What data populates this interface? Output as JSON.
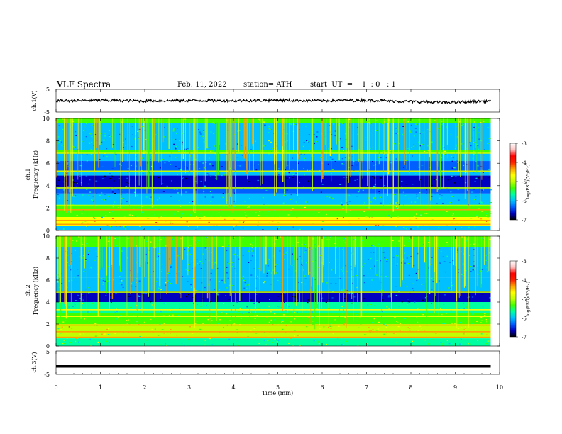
{
  "header": {
    "title": "VLF Spectra",
    "date": "Feb. 11, 2022",
    "station": "station= ATH",
    "start_ut": "start  UT  =    1  : 0   : 1"
  },
  "panels": {
    "ch1_wave": {
      "ylabel": "ch.1(V)",
      "yticks": [
        "5",
        "-5"
      ]
    },
    "ch1_spec": {
      "ylabel_line1": "ch.1",
      "ylabel_line2": "Frequency  (kHz)",
      "yticks": [
        "10",
        "8",
        "6",
        "4",
        "2",
        "0"
      ]
    },
    "ch2_spec": {
      "ylabel_line1": "ch.2",
      "ylabel_line2": "Frequency  (kHz)",
      "yticks": [
        "10",
        "8",
        "6",
        "4",
        "2",
        "0"
      ]
    },
    "ch3_wave": {
      "ylabel": "ch.3(V)",
      "yticks": [
        "5",
        "-5"
      ]
    }
  },
  "x_axis": {
    "label": "Time  (min)",
    "ticks": [
      "0",
      "1",
      "2",
      "3",
      "4",
      "5",
      "6",
      "7",
      "8",
      "9",
      "10"
    ]
  },
  "colorbar": {
    "label": "log(PSD)(V²/Hz)",
    "ticks": [
      "-3",
      "-4",
      "-5",
      "-6",
      "-7"
    ],
    "colors": [
      "#000000",
      "#0000c0",
      "#0060ff",
      "#00c0ff",
      "#00ffa0",
      "#40ff00",
      "#c0ff00",
      "#ffff00",
      "#ffa000",
      "#ff2000",
      "#ff0000",
      "#ffc0c0",
      "#ffffff"
    ]
  },
  "chart_data": [
    {
      "type": "line",
      "title": "VLF Spectra",
      "ylabel": "ch.1(V)",
      "xlabel": "",
      "xlim": [
        0,
        10
      ],
      "ylim": [
        -5,
        5
      ],
      "series": [
        {
          "x": [
            0,
            1,
            2,
            3,
            4,
            5,
            6,
            7,
            8,
            8.8,
            9.8
          ],
          "values": [
            0,
            0.1,
            -0.1,
            0.1,
            0,
            0.2,
            0,
            0.2,
            -0.4,
            -0.8,
            -0.1
          ]
        }
      ]
    },
    {
      "type": "heatmap",
      "ylabel": "ch.1  Frequency  (kHz)",
      "xlim": [
        0,
        10
      ],
      "ylim": [
        0,
        10
      ],
      "data_end_min": 9.8,
      "bands": [
        {
          "freq": [
            9.6,
            10
          ],
          "level": -5.2
        },
        {
          "freq": [
            7.2,
            9.6
          ],
          "level": -6.0
        },
        {
          "freq": [
            6.9,
            7.2
          ],
          "level": -5.4
        },
        {
          "freq": [
            6.2,
            6.9
          ],
          "level": -6.0
        },
        {
          "freq": [
            5.2,
            6.2
          ],
          "level": -6.2
        },
        {
          "freq": [
            4.9,
            5.2
          ],
          "level": -6.0
        },
        {
          "freq": [
            3.9,
            4.9
          ],
          "level": -6.8
        },
        {
          "freq": [
            3.3,
            3.9
          ],
          "level": -6.3
        },
        {
          "freq": [
            2.3,
            3.3
          ],
          "level": -6.0
        },
        {
          "freq": [
            2.0,
            2.3
          ],
          "level": -5.5
        },
        {
          "freq": [
            1.2,
            2.0
          ],
          "level": -5.4
        },
        {
          "freq": [
            0.4,
            1.2
          ],
          "level": -4.7
        },
        {
          "freq": [
            0,
            0.4
          ],
          "level": -6.0
        }
      ],
      "lines_khz": [
        {
          "freq": 6.9,
          "level": -5.0
        },
        {
          "freq": 5.3,
          "level": -5.1
        },
        {
          "freq": 3.8,
          "level": -5.0
        },
        {
          "freq": 2.2,
          "level": -4.6
        },
        {
          "freq": 1.85,
          "level": -4.5
        },
        {
          "freq": 0.9,
          "level": -4.2
        },
        {
          "freq": 0.55,
          "level": -4.3
        }
      ]
    },
    {
      "type": "heatmap",
      "ylabel": "ch.2  Frequency  (kHz)",
      "xlim": [
        0,
        10
      ],
      "ylim": [
        0,
        10
      ],
      "data_end_min": 9.8,
      "bands": [
        {
          "freq": [
            9.0,
            10
          ],
          "level": -5.4
        },
        {
          "freq": [
            6.2,
            9.0
          ],
          "level": -6.0
        },
        {
          "freq": [
            5.0,
            6.2
          ],
          "level": -5.9
        },
        {
          "freq": [
            4.0,
            5.0
          ],
          "level": -6.7
        },
        {
          "freq": [
            3.0,
            4.0
          ],
          "level": -5.7
        },
        {
          "freq": [
            2.0,
            3.0
          ],
          "level": -5.2
        },
        {
          "freq": [
            0.7,
            2.0
          ],
          "level": -5.0
        },
        {
          "freq": [
            0,
            0.7
          ],
          "level": -5.6
        }
      ],
      "lines_khz": [
        {
          "freq": 4.9,
          "level": -5.0
        },
        {
          "freq": 3.3,
          "level": -4.6
        },
        {
          "freq": 2.7,
          "level": -4.6
        },
        {
          "freq": 1.9,
          "level": -4.2
        },
        {
          "freq": 1.3,
          "level": -4.5
        },
        {
          "freq": 0.8,
          "level": -4.4
        }
      ]
    },
    {
      "type": "line",
      "ylabel": "ch.3(V)",
      "xlabel": "Time  (min)",
      "xlim": [
        0,
        10
      ],
      "ylim": [
        -5,
        5
      ],
      "series": [
        {
          "x": [
            0,
            9.8
          ],
          "values": [
            -1.5,
            -1.5
          ]
        }
      ]
    }
  ]
}
